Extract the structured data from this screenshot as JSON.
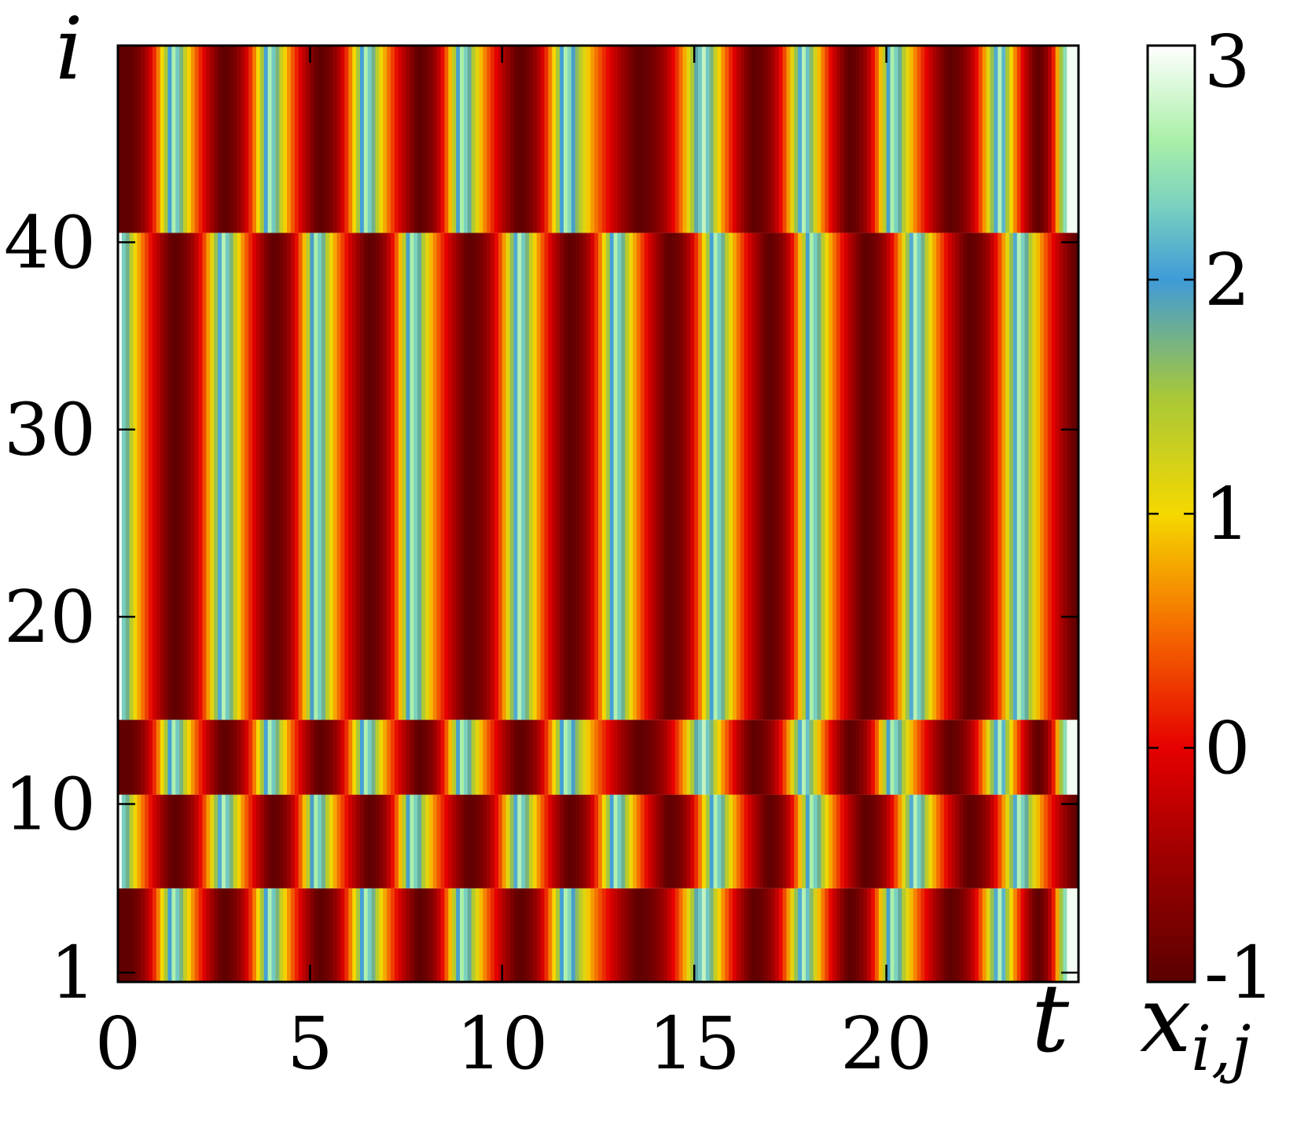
{
  "chart_data": {
    "type": "heatmap",
    "title": "",
    "xlabel": "t",
    "ylabel": "i",
    "colorbar_label": "x",
    "colorbar_label_subscript": "i,j",
    "xlim": [
      0,
      25
    ],
    "ylim": [
      1,
      50
    ],
    "x_ticks": [
      0,
      5,
      10,
      15,
      20
    ],
    "x_tick_labels": [
      "0",
      "5",
      "10",
      "15",
      "20"
    ],
    "y_ticks": [
      1,
      10,
      20,
      30,
      40
    ],
    "y_tick_labels": [
      "1",
      "10",
      "20",
      "30",
      "40"
    ],
    "colorbar": {
      "range": [
        -1,
        3
      ],
      "ticks": [
        -1,
        0,
        1,
        2,
        3
      ],
      "tick_labels": [
        "-1",
        "0",
        "1",
        "2",
        "3"
      ],
      "colormap": [
        {
          "v": -1.0,
          "color": "#5a0000"
        },
        {
          "v": -0.4,
          "color": "#a80000"
        },
        {
          "v": 0.0,
          "color": "#e60000"
        },
        {
          "v": 0.5,
          "color": "#f56a00"
        },
        {
          "v": 1.0,
          "color": "#f5d800"
        },
        {
          "v": 1.5,
          "color": "#a8c838"
        },
        {
          "v": 2.0,
          "color": "#3f9bd8"
        },
        {
          "v": 2.3,
          "color": "#77cfc0"
        },
        {
          "v": 2.6,
          "color": "#aaf0a8"
        },
        {
          "v": 3.0,
          "color": "#ffffff"
        }
      ]
    },
    "bands": [
      {
        "rows": [
          1,
          5
        ],
        "group": "A"
      },
      {
        "rows": [
          6,
          10
        ],
        "group": "B"
      },
      {
        "rows": [
          11,
          14
        ],
        "group": "A"
      },
      {
        "rows": [
          15,
          40
        ],
        "group": "B"
      },
      {
        "rows": [
          41,
          50
        ],
        "group": "A"
      }
    ],
    "group_pattern": {
      "A": {
        "bright_peaks_t": [
          1.5,
          4.0,
          6.5,
          9.0,
          11.7,
          15.3,
          17.9,
          20.2,
          23.0,
          24.7
        ],
        "dark_troughs_t": [
          0.2,
          2.7,
          5.2,
          7.8,
          10.4,
          13.5,
          16.5,
          19.0,
          21.6,
          23.9
        ]
      },
      "B": {
        "bright_peaks_t": [
          0.1,
          2.8,
          5.2,
          7.7,
          10.5,
          13.0,
          15.6,
          18.1,
          20.8,
          23.5
        ],
        "dark_troughs_t": [
          1.4,
          4.0,
          6.5,
          9.1,
          11.7,
          14.3,
          16.9,
          19.4,
          22.1,
          24.9
        ]
      }
    }
  }
}
